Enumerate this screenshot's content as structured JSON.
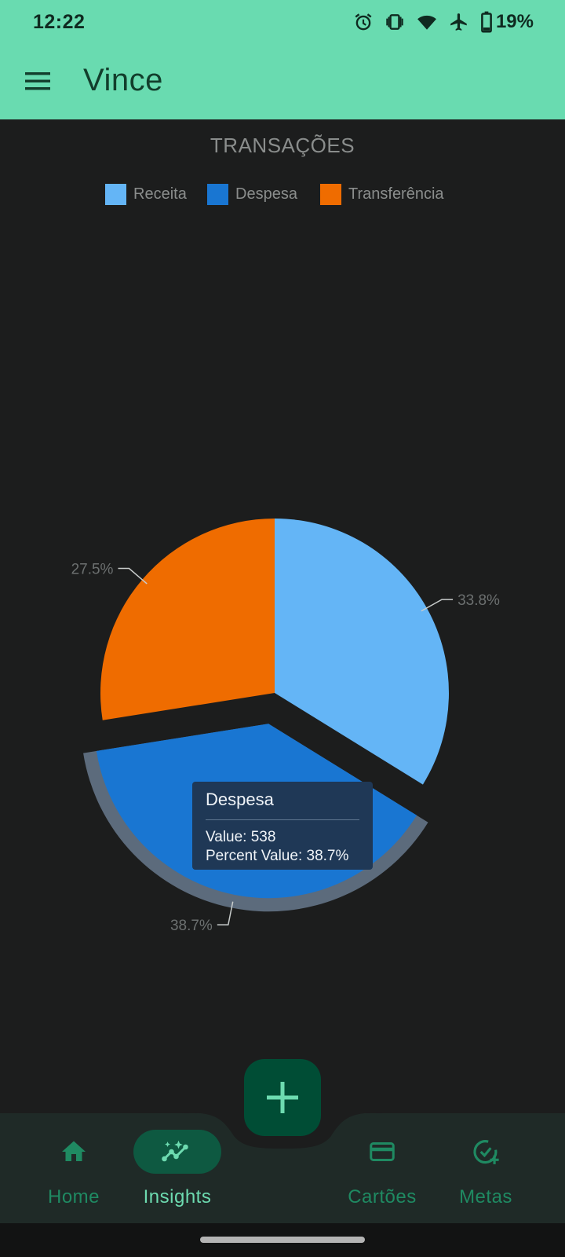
{
  "status_bar": {
    "time": "12:22",
    "battery": "19%",
    "icons": [
      "alarm-icon",
      "vibrate-icon",
      "wifi-icon",
      "airplane-icon",
      "battery-icon"
    ]
  },
  "app_bar": {
    "title": "Vince",
    "menu_icon": "menu-icon"
  },
  "chart_data": {
    "type": "pie",
    "title": "TRANSAÇÕES",
    "legend_position": "top",
    "categories": [
      "Receita",
      "Despesa",
      "Transferência"
    ],
    "percentages": [
      33.8,
      38.7,
      27.5
    ],
    "percent_labels": [
      "33.8%",
      "38.7%",
      "27.5%"
    ],
    "colors": [
      "#64b5f6",
      "#1976d2",
      "#ef6c00"
    ],
    "selected": "Despesa",
    "tooltip": {
      "title": "Despesa",
      "value_line": "Value: 538",
      "percent_line": "Percent Value: 38.7%"
    }
  },
  "fab": {
    "icon": "plus-icon"
  },
  "bottom_nav": {
    "items": [
      {
        "label": "Home",
        "icon": "home-icon",
        "active": false
      },
      {
        "label": "Insights",
        "icon": "insights-icon",
        "active": true
      },
      {
        "label": "Cartões",
        "icon": "credit-card-icon",
        "active": false
      },
      {
        "label": "Metas",
        "icon": "goal-check-icon",
        "active": false
      }
    ]
  },
  "colors": {
    "primary": "#69dbb0",
    "background": "#1c1d1d",
    "nav_background": "#1f2a27",
    "fab": "#004d35"
  }
}
